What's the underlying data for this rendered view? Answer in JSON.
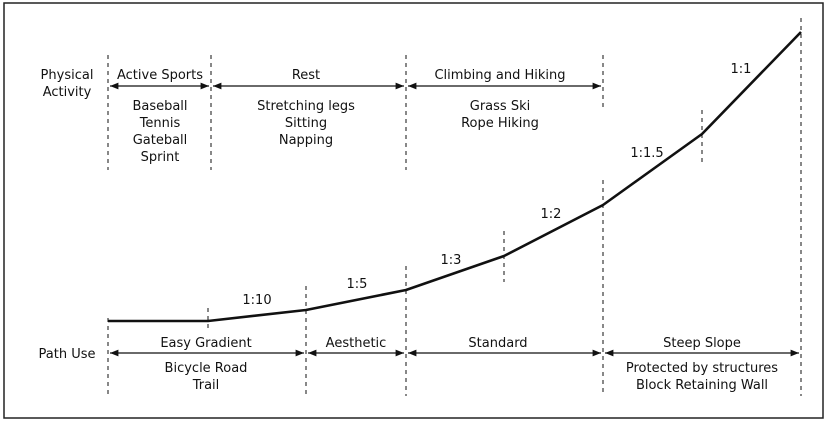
{
  "colors": {
    "ink": "#111111",
    "frame": "#222222",
    "background": "#ffffff"
  },
  "rows": {
    "physical_activity": [
      "Physical",
      "Activity"
    ],
    "path_use": "Path Use"
  },
  "activity_zones": [
    {
      "header": "Active Sports",
      "items": [
        "Baseball",
        "Tennis",
        "Gateball",
        "Sprint"
      ]
    },
    {
      "header": "Rest",
      "items": [
        "Stretching legs",
        "Sitting",
        "Napping"
      ]
    },
    {
      "header": "Climbing and Hiking",
      "items": [
        "Grass Ski",
        "Rope Hiking"
      ]
    }
  ],
  "path_zones": [
    {
      "header": "Easy Gradient",
      "items": [
        "Bicycle Road",
        "Trail"
      ]
    },
    {
      "header": "Aesthetic",
      "items": []
    },
    {
      "header": "Standard",
      "items": []
    },
    {
      "header": "Steep Slope",
      "items": [
        "Protected by structures",
        "Block Retaining Wall"
      ]
    }
  ],
  "slope_labels": [
    "1:10",
    "1:5",
    "1:3",
    "1:2",
    "1:1.5",
    "1:1"
  ]
}
